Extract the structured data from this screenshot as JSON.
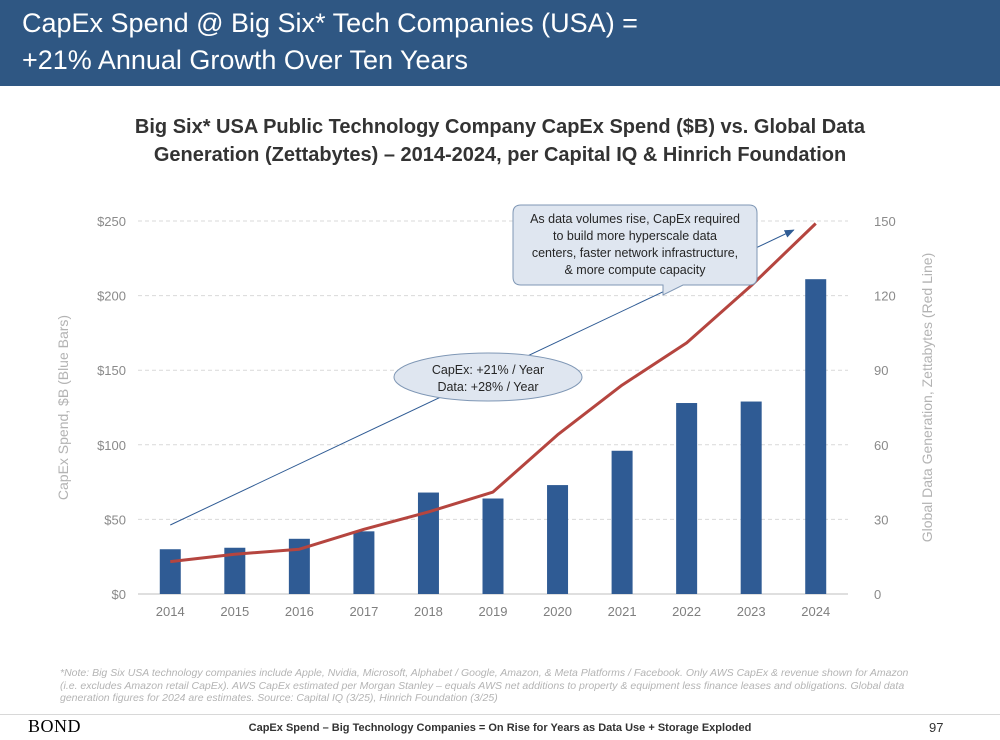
{
  "slide": {
    "title_line1": "CapEx Spend @ Big Six* Tech Companies (USA) =",
    "title_line2": "+21% Annual Growth Over Ten Years",
    "footnote_line1": "*Note: Big Six USA technology companies include Apple, Nvidia, Microsoft, Alphabet / Google, Amazon, & Meta Platforms / Facebook. Only AWS CapEx & revenue shown for Amazon",
    "footnote_line2": "(i.e. excludes Amazon retail CapEx). AWS CapEx estimated per Morgan Stanley – equals AWS net additions to property & equipment less finance leases and obligations. Global data",
    "footnote_line3": "generation figures for 2024 are estimates. Source: Capital IQ (3/25), Hinrich Foundation (3/25)",
    "logo": "BOND",
    "footer_caption": "CapEx Spend – Big Technology Companies = On Rise for Years as Data Use + Storage Exploded",
    "page_number": "97"
  },
  "chart_data": {
    "type": "bar",
    "title_line1": "Big Six* USA Public Technology Company CapEx Spend ($B) vs. Global Data",
    "title_line2": "Generation (Zettabytes) – 2014-2024, per Capital IQ & Hinrich Foundation",
    "categories": [
      "2014",
      "2015",
      "2016",
      "2017",
      "2018",
      "2019",
      "2020",
      "2021",
      "2022",
      "2023",
      "2024"
    ],
    "series": [
      {
        "name": "CapEx Spend, $B (Blue Bars)",
        "type": "bar",
        "axis": "left",
        "color": "#2f5b94",
        "values": [
          30,
          31,
          37,
          42,
          68,
          64,
          73,
          96,
          128,
          129,
          211
        ]
      },
      {
        "name": "Global Data Generation, Zettabytes (Red Line)",
        "type": "line",
        "axis": "right",
        "color": "#b5453f",
        "values": [
          13,
          16,
          18,
          26,
          33,
          41,
          64,
          84,
          101,
          124,
          149
        ]
      }
    ],
    "ylabel": "CapEx Spend, $B (Blue Bars)",
    "ylim": [
      0,
      250
    ],
    "yticks": [
      "$0",
      "$50",
      "$100",
      "$150",
      "$200",
      "$250"
    ],
    "y2label": "Global Data Generation, Zettabytes (Red Line)",
    "y2lim": [
      0,
      150
    ],
    "y2ticks": [
      "0",
      "30",
      "60",
      "90",
      "120",
      "150"
    ],
    "grid": true,
    "annotations": {
      "callout_top": [
        "As data volumes rise, CapEx required",
        "to build more hyperscale data",
        "centers, faster network infrastructure,",
        "& more compute capacity"
      ],
      "oval_label": [
        "CapEx: +21% / Year",
        "Data: +28% / Year"
      ]
    }
  }
}
